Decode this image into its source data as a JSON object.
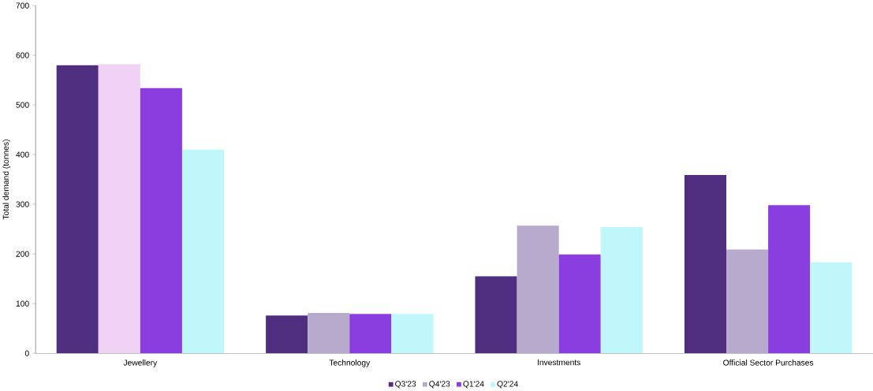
{
  "chart_data": {
    "type": "bar",
    "ylabel": "Total demand (tonnes)",
    "categories": [
      "Jewellery",
      "Technology",
      "Investments",
      "Official Sector Purchases"
    ],
    "ylim": [
      0,
      700
    ],
    "yticks": [
      0,
      100,
      200,
      300,
      400,
      500,
      600,
      700
    ],
    "legend": "bottom",
    "grid": false,
    "series": [
      {
        "name": "Q3'23",
        "color": "#4f2d7f",
        "values": [
          580,
          76,
          155,
          359
        ]
      },
      {
        "name": "Q4'23",
        "color": "#b8aacc",
        "colors": [
          "#f0d2f4",
          "#b8aacc",
          "#b8aacc",
          "#b8aacc"
        ],
        "values": [
          582,
          81,
          257,
          209
        ]
      },
      {
        "name": "Q1'24",
        "color": "#8a3ee0",
        "values": [
          534,
          79,
          199,
          298
        ]
      },
      {
        "name": "Q2'24",
        "color": "#bff7fb",
        "values": [
          410,
          79,
          254,
          183
        ]
      }
    ]
  }
}
